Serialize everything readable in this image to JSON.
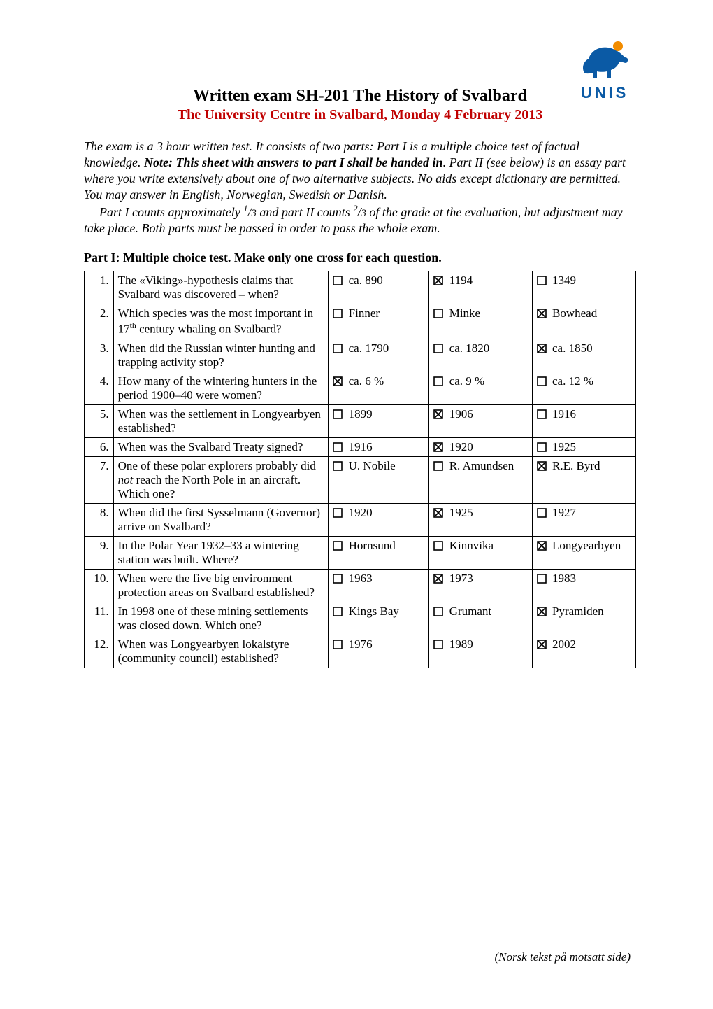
{
  "colors": {
    "text": "#000000",
    "red": "#c00000",
    "logo_blue": "#0b5aa5",
    "logo_orange": "#f28c00",
    "background": "#ffffff",
    "border": "#000000"
  },
  "typography": {
    "body_family": "Times New Roman",
    "body_size_pt": 12,
    "title_size_pt": 16,
    "subtitle_size_pt": 14
  },
  "logo_text": "UNIS",
  "title_main": "Written exam SH-201 The History of Svalbard",
  "title_sub": "The University Centre in Svalbard, Monday 4 February 2013",
  "intro": {
    "p1_a": "The exam is a 3 hour written test. It consists of two parts: Part I is a multiple choice test of factual knowledge. ",
    "note": "Note: This sheet with answers to part I shall be handed in",
    "p1_b": ". Part II (see below) is an essay part where you write extensively about one of two alternative subjects. No aids except dictionary are permitted. You may answer in English, Norwegian, Swedish or Danish.",
    "p2_a": "Part I counts approximately ",
    "frac1_num": "1",
    "frac1_den": "3",
    "p2_b": " and part II counts ",
    "frac2_num": "2",
    "frac2_den": "3",
    "p2_c": " of the grade at the evaluation, but adjustment may take place. Both parts must be passed in order to pass the whole exam."
  },
  "section_heading": "Part I: Multiple choice test. Make only one cross for each question.",
  "quiz": {
    "columns": [
      "num",
      "question",
      "optA",
      "optB",
      "optC"
    ],
    "rows": [
      {
        "num": "1.",
        "q_html": "The «Viking»-hypothesis claims that Svalbard was discovered – when?",
        "a": {
          "label": "ca. 890",
          "checked": false
        },
        "b": {
          "label": "1194",
          "checked": true
        },
        "c": {
          "label": "1349",
          "checked": false
        }
      },
      {
        "num": "2.",
        "q_html": "Which species was the most important in 17<span class='sup'>th</span> century whaling on Svalbard?",
        "a": {
          "label": "Finner",
          "checked": false
        },
        "b": {
          "label": "Minke",
          "checked": false
        },
        "c": {
          "label": "Bowhead",
          "checked": true
        }
      },
      {
        "num": "3.",
        "q_html": "When did the Russian winter hunting and trapping activity stop?",
        "a": {
          "label": "ca. 1790",
          "checked": false
        },
        "b": {
          "label": "ca. 1820",
          "checked": false
        },
        "c": {
          "label": "ca. 1850",
          "checked": true
        }
      },
      {
        "num": "4.",
        "q_html": "How many of the wintering hunters in the period 1900–40 were women?",
        "a": {
          "label": "ca. 6 %",
          "checked": true
        },
        "b": {
          "label": "ca. 9 %",
          "checked": false
        },
        "c": {
          "label": "ca. 12 %",
          "checked": false
        }
      },
      {
        "num": "5.",
        "q_html": "When was the settlement in Longyearbyen established?",
        "a": {
          "label": "1899",
          "checked": false
        },
        "b": {
          "label": "1906",
          "checked": true
        },
        "c": {
          "label": " 1916",
          "checked": false
        }
      },
      {
        "num": "6.",
        "q_html": "When was the Svalbard Treaty signed?",
        "a": {
          "label": "1916",
          "checked": false
        },
        "b": {
          "label": "1920",
          "checked": true
        },
        "c": {
          "label": "1925",
          "checked": false
        }
      },
      {
        "num": "7.",
        "q_html": "One of these polar explorers probably did <span class='italic'>not</span> reach the North Pole in an aircraft. Which one?",
        "a": {
          "label": "U. Nobile",
          "checked": false
        },
        "b": {
          "label": "R. Amundsen",
          "checked": false
        },
        "c": {
          "label": "R.E. Byrd",
          "checked": true
        }
      },
      {
        "num": "8.",
        "q_html": "When did the first Sysselmann (Governor) arrive on Svalbard?",
        "a": {
          "label": "1920",
          "checked": false
        },
        "b": {
          "label": "1925",
          "checked": true
        },
        "c": {
          "label": "1927",
          "checked": false
        }
      },
      {
        "num": "9.",
        "q_html": "In the Polar Year 1932–33 a wintering station was built. Where?",
        "a": {
          "label": "Hornsund",
          "checked": false
        },
        "b": {
          "label": "Kinnvika",
          "checked": false
        },
        "c": {
          "label": "Longyearbyen",
          "checked": true
        }
      },
      {
        "num": "10.",
        "q_html": "When were the five big environment protection areas on Svalbard established?",
        "a": {
          "label": "1963",
          "checked": false
        },
        "b": {
          "label": "1973",
          "checked": true
        },
        "c": {
          "label": "1983",
          "checked": false
        }
      },
      {
        "num": "11.",
        "q_html": "In 1998 one of these mining settlements was closed down. Which one?",
        "a": {
          "label": "Kings Bay",
          "checked": false
        },
        "b": {
          "label": "Grumant",
          "checked": false
        },
        "c": {
          "label": "Pyramiden",
          "checked": true
        }
      },
      {
        "num": "12.",
        "q_html": "When was Longyearbyen lokalstyre (community council) established?",
        "a": {
          "label": "1976",
          "checked": false
        },
        "b": {
          "label": "1989",
          "checked": false
        },
        "c": {
          "label": "2002",
          "checked": true
        }
      }
    ]
  },
  "footer": "(Norsk tekst på motsatt side)"
}
